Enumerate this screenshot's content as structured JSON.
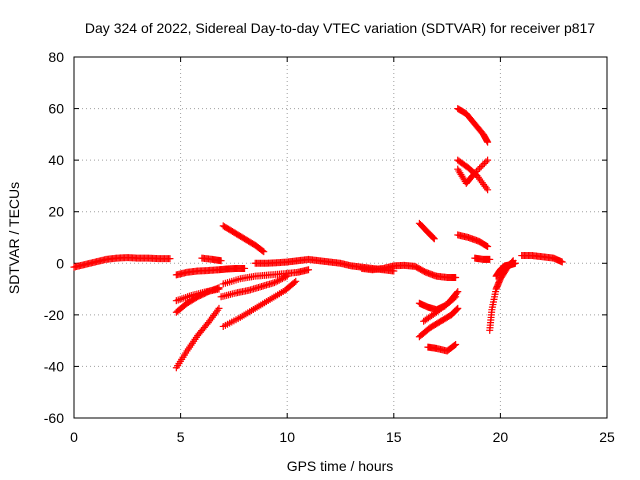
{
  "chart_data": {
    "type": "scatter",
    "title": "Day 324 of 2022, Sidereal Day-to-day VTEC variation (SDTVAR) for receiver p817",
    "xlabel": "GPS time / hours",
    "ylabel": "SDTVAR / TECUs",
    "xlim": [
      0,
      25
    ],
    "ylim": [
      -60,
      80
    ],
    "xticks": [
      "0",
      "5",
      "10",
      "15",
      "20",
      "25"
    ],
    "yticks": [
      "-60",
      "-40",
      "-20",
      "0",
      "20",
      "40",
      "60",
      "80"
    ],
    "grid": true,
    "marker": "+",
    "series_color": "#ff0000",
    "series": [
      {
        "x": [
          0.0,
          0.5,
          1.0,
          1.5,
          2.0,
          2.5,
          3.0,
          3.5,
          4.0,
          4.5
        ],
        "y": [
          -1.5,
          -0.5,
          0.5,
          1.5,
          2.0,
          2.2,
          2.0,
          2.0,
          1.8,
          1.8
        ]
      },
      {
        "x": [
          4.8,
          5.3,
          5.8,
          6.3,
          6.8,
          7.2,
          7.6,
          8.0
        ],
        "y": [
          -4.5,
          -3.5,
          -3.0,
          -2.8,
          -2.5,
          -2.2,
          -2.0,
          -2.0
        ]
      },
      {
        "x": [
          6.0,
          6.5,
          6.9
        ],
        "y": [
          2.0,
          1.5,
          1.0
        ]
      },
      {
        "x": [
          7.0,
          7.5,
          8.0,
          8.5,
          8.9
        ],
        "y": [
          14.5,
          12.0,
          9.5,
          7.0,
          4.5
        ]
      },
      {
        "x": [
          4.8,
          5.3,
          5.8,
          6.3,
          6.8
        ],
        "y": [
          -19.0,
          -15.5,
          -13.0,
          -11.0,
          -9.5
        ]
      },
      {
        "x": [
          4.8,
          5.5,
          6.2,
          6.8
        ],
        "y": [
          -14.5,
          -12.5,
          -11.0,
          -10.0
        ]
      },
      {
        "x": [
          4.8,
          5.3,
          5.8,
          6.3,
          6.8
        ],
        "y": [
          -40.5,
          -34.0,
          -28.0,
          -23.0,
          -17.5
        ]
      },
      {
        "x": [
          6.9,
          7.6,
          8.2,
          8.8,
          9.4,
          10.0
        ],
        "y": [
          -13.0,
          -11.5,
          -10.5,
          -9.0,
          -7.5,
          -5.0
        ]
      },
      {
        "x": [
          7.0,
          7.8,
          8.5,
          9.2,
          9.9,
          10.4
        ],
        "y": [
          -24.5,
          -21.0,
          -17.5,
          -14.0,
          -10.5,
          -7.0
        ]
      },
      {
        "x": [
          7.0,
          7.8,
          8.5,
          9.2,
          9.9,
          10.5,
          11.0
        ],
        "y": [
          -8.0,
          -6.0,
          -5.0,
          -4.5,
          -4.0,
          -3.5,
          -2.5
        ]
      },
      {
        "x": [
          8.5,
          9.0,
          9.5,
          10.0,
          10.5,
          11.0,
          11.5,
          12.0,
          12.5,
          13.0,
          13.5,
          14.0,
          14.5,
          15.0
        ],
        "y": [
          0.0,
          0.0,
          0.2,
          0.5,
          1.0,
          1.5,
          1.0,
          0.5,
          0.0,
          -1.0,
          -1.5,
          -2.0,
          -2.5,
          -3.0
        ]
      },
      {
        "x": [
          13.5,
          14.0,
          14.5,
          15.0,
          15.5,
          16.0,
          16.5,
          17.0,
          17.5,
          17.9
        ],
        "y": [
          -2.0,
          -2.5,
          -2.0,
          -1.0,
          -0.8,
          -1.2,
          -3.5,
          -5.0,
          -5.5,
          -5.5
        ]
      },
      {
        "x": [
          16.2,
          16.6,
          16.9
        ],
        "y": [
          15.5,
          12.0,
          9.5
        ]
      },
      {
        "x": [
          16.2,
          16.6,
          17.0,
          17.4,
          17.9
        ],
        "y": [
          -15.5,
          -17.0,
          -18.0,
          -16.5,
          -13.0
        ]
      },
      {
        "x": [
          16.4,
          17.0,
          17.6,
          18.0
        ],
        "y": [
          -22.5,
          -19.0,
          -15.0,
          -11.0
        ]
      },
      {
        "x": [
          16.2,
          16.7,
          17.2,
          17.7,
          18.0
        ],
        "y": [
          -28.5,
          -25.0,
          -22.5,
          -20.0,
          -17.5
        ]
      },
      {
        "x": [
          16.6,
          17.0,
          17.5,
          17.9
        ],
        "y": [
          -32.5,
          -33.0,
          -34.0,
          -31.5
        ]
      },
      {
        "x": [
          18.0,
          18.4,
          18.8,
          19.2,
          19.4
        ],
        "y": [
          60.0,
          58.0,
          54.0,
          50.0,
          47.0
        ]
      },
      {
        "x": [
          18.0,
          18.5,
          18.9,
          19.4
        ],
        "y": [
          40.0,
          37.0,
          34.0,
          28.5
        ]
      },
      {
        "x": [
          18.0,
          18.4,
          18.8,
          19.4
        ],
        "y": [
          36.5,
          31.0,
          35.0,
          40.0
        ]
      },
      {
        "x": [
          18.0,
          18.5,
          19.0,
          19.4
        ],
        "y": [
          11.0,
          10.0,
          8.5,
          6.5
        ]
      },
      {
        "x": [
          18.8,
          19.2,
          19.5
        ],
        "y": [
          2.0,
          1.5,
          1.5
        ]
      },
      {
        "x": [
          19.5,
          19.6,
          19.8,
          20.0,
          20.3,
          20.6
        ],
        "y": [
          -26.0,
          -18.0,
          -10.0,
          -6.0,
          -2.0,
          1.0
        ]
      },
      {
        "x": [
          19.8,
          20.0,
          20.2,
          20.5,
          20.7
        ],
        "y": [
          -5.0,
          -2.5,
          -1.0,
          -0.5,
          0.0
        ]
      },
      {
        "x": [
          21.0,
          21.5,
          22.0,
          22.5,
          22.9
        ],
        "y": [
          3.0,
          3.0,
          2.5,
          2.0,
          0.5
        ]
      }
    ]
  }
}
